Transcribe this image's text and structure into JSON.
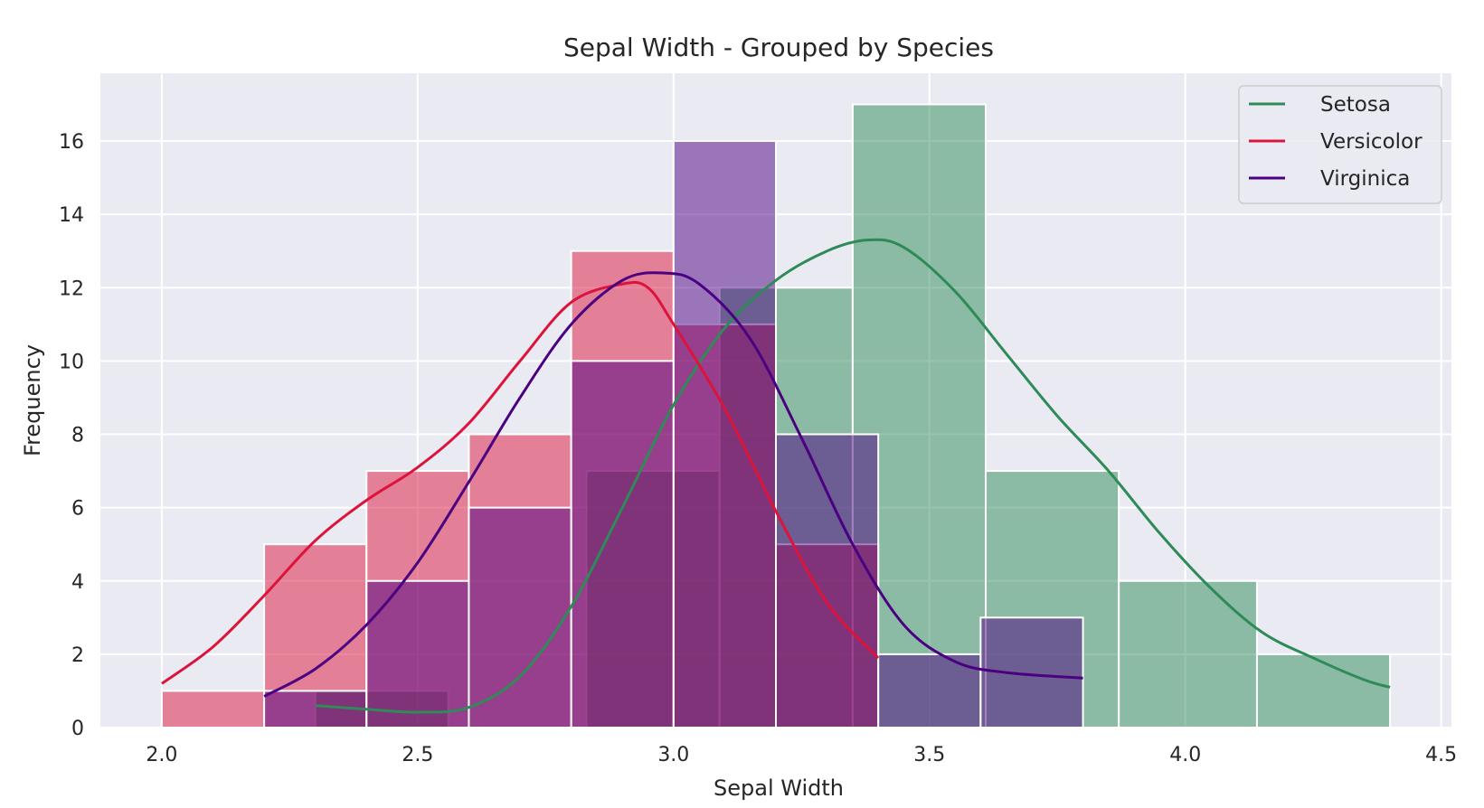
{
  "chart_data": {
    "type": "histogram",
    "title": "Sepal Width - Grouped by Species",
    "xlabel": "Sepal Width",
    "ylabel": "Frequency",
    "xlim": [
      1.88,
      4.52
    ],
    "ylim": [
      0,
      17.85
    ],
    "xticks": [
      "2.0",
      "2.5",
      "3.0",
      "3.5",
      "4.0",
      "4.5"
    ],
    "xtick_values": [
      2.0,
      2.5,
      3.0,
      3.5,
      4.0,
      4.5
    ],
    "yticks": [
      "0",
      "2",
      "4",
      "6",
      "8",
      "10",
      "12",
      "14",
      "16"
    ],
    "ytick_values": [
      0,
      2,
      4,
      6,
      8,
      10,
      12,
      14,
      16
    ],
    "grid": true,
    "legend_position": "top-right",
    "background": "#eaeaf2",
    "series": [
      {
        "name": "Setosa",
        "color": "#2e8b57",
        "bins": [
          {
            "x0": 2.3,
            "x1": 2.56,
            "count": 1
          },
          {
            "x0": 2.56,
            "x1": 2.83,
            "count": 0
          },
          {
            "x0": 2.83,
            "x1": 3.09,
            "count": 7
          },
          {
            "x0": 3.09,
            "x1": 3.35,
            "count": 12
          },
          {
            "x0": 3.35,
            "x1": 3.61,
            "count": 17
          },
          {
            "x0": 3.61,
            "x1": 3.87,
            "count": 7
          },
          {
            "x0": 3.87,
            "x1": 4.14,
            "count": 4
          },
          {
            "x0": 4.14,
            "x1": 4.4,
            "count": 2
          }
        ],
        "kde": [
          [
            2.3,
            0.6
          ],
          [
            2.4,
            0.5
          ],
          [
            2.5,
            0.42
          ],
          [
            2.6,
            0.55
          ],
          [
            2.7,
            1.4
          ],
          [
            2.8,
            3.3
          ],
          [
            2.9,
            6.0
          ],
          [
            3.0,
            8.8
          ],
          [
            3.1,
            10.9
          ],
          [
            3.2,
            12.2
          ],
          [
            3.3,
            13.0
          ],
          [
            3.38,
            13.3
          ],
          [
            3.45,
            13.1
          ],
          [
            3.55,
            11.9
          ],
          [
            3.65,
            10.2
          ],
          [
            3.75,
            8.5
          ],
          [
            3.85,
            7.0
          ],
          [
            3.95,
            5.3
          ],
          [
            4.05,
            3.8
          ],
          [
            4.15,
            2.6
          ],
          [
            4.25,
            1.9
          ],
          [
            4.35,
            1.3
          ],
          [
            4.4,
            1.1
          ]
        ]
      },
      {
        "name": "Versicolor",
        "color": "#dc143c",
        "bins": [
          {
            "x0": 2.0,
            "x1": 2.2,
            "count": 1
          },
          {
            "x0": 2.2,
            "x1": 2.4,
            "count": 5
          },
          {
            "x0": 2.4,
            "x1": 2.6,
            "count": 7
          },
          {
            "x0": 2.6,
            "x1": 2.8,
            "count": 8
          },
          {
            "x0": 2.8,
            "x1": 3.0,
            "count": 13
          },
          {
            "x0": 3.0,
            "x1": 3.2,
            "count": 11
          },
          {
            "x0": 3.2,
            "x1": 3.4,
            "count": 5
          }
        ],
        "kde": [
          [
            2.0,
            1.2
          ],
          [
            2.1,
            2.2
          ],
          [
            2.2,
            3.6
          ],
          [
            2.3,
            5.1
          ],
          [
            2.4,
            6.2
          ],
          [
            2.5,
            7.1
          ],
          [
            2.6,
            8.3
          ],
          [
            2.7,
            10.0
          ],
          [
            2.8,
            11.6
          ],
          [
            2.9,
            12.1
          ],
          [
            2.95,
            12.0
          ],
          [
            3.0,
            11.0
          ],
          [
            3.1,
            8.7
          ],
          [
            3.2,
            5.9
          ],
          [
            3.3,
            3.4
          ],
          [
            3.4,
            1.9
          ]
        ]
      },
      {
        "name": "Virginica",
        "color": "#4b0082",
        "bins": [
          {
            "x0": 2.2,
            "x1": 2.4,
            "count": 1
          },
          {
            "x0": 2.4,
            "x1": 2.6,
            "count": 4
          },
          {
            "x0": 2.6,
            "x1": 2.8,
            "count": 6
          },
          {
            "x0": 2.8,
            "x1": 3.0,
            "count": 10
          },
          {
            "x0": 3.0,
            "x1": 3.2,
            "count": 16
          },
          {
            "x0": 3.2,
            "x1": 3.4,
            "count": 8
          },
          {
            "x0": 3.4,
            "x1": 3.6,
            "count": 2
          },
          {
            "x0": 3.6,
            "x1": 3.8,
            "count": 3
          }
        ],
        "kde": [
          [
            2.2,
            0.85
          ],
          [
            2.3,
            1.6
          ],
          [
            2.4,
            2.8
          ],
          [
            2.5,
            4.5
          ],
          [
            2.6,
            6.7
          ],
          [
            2.7,
            9.0
          ],
          [
            2.8,
            11.0
          ],
          [
            2.9,
            12.2
          ],
          [
            2.98,
            12.4
          ],
          [
            3.05,
            12.1
          ],
          [
            3.15,
            10.6
          ],
          [
            3.25,
            7.9
          ],
          [
            3.35,
            5.0
          ],
          [
            3.45,
            2.8
          ],
          [
            3.55,
            1.8
          ],
          [
            3.65,
            1.5
          ],
          [
            3.8,
            1.35
          ]
        ]
      }
    ]
  }
}
